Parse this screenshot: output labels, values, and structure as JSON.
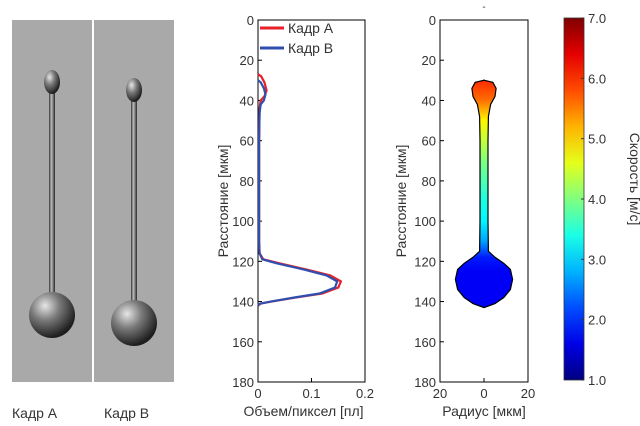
{
  "frames": [
    {
      "caption": "Кадр A"
    },
    {
      "caption": "Кадр B"
    }
  ],
  "colors": {
    "background_gray": "#a9a9a9",
    "series_a": "#e8202a",
    "series_b": "#2f4fb0"
  },
  "chart_data": [
    {
      "type": "line",
      "orientation": "vertical-profile",
      "xlabel": "Объем/пиксел [пл]",
      "ylabel": "Расстояние [мкм]",
      "xlim": [
        0,
        0.2
      ],
      "ylim": [
        0,
        180
      ],
      "y_inverted": true,
      "xticks": [
        0,
        0.1,
        0.2
      ],
      "xtick_labels": [
        "0",
        "0.1",
        "0.2"
      ],
      "yticks": [
        0,
        20,
        40,
        60,
        80,
        100,
        120,
        140,
        160,
        180
      ],
      "ytick_labels": [
        "0",
        "20",
        "40",
        "60",
        "80",
        "100",
        "120",
        "140",
        "160",
        "180"
      ],
      "legend_position": "top-right",
      "series": [
        {
          "name": "Кадр A",
          "color": "#e8202a",
          "points": [
            [
              0,
              27
            ],
            [
              0.006,
              28
            ],
            [
              0.012,
              31
            ],
            [
              0.016,
              35
            ],
            [
              0.012,
              38
            ],
            [
              0.005,
              40
            ],
            [
              0.003,
              44
            ],
            [
              0.002,
              60
            ],
            [
              0.002,
              90
            ],
            [
              0.002,
              110
            ],
            [
              0.003,
              116
            ],
            [
              0.01,
              119
            ],
            [
              0.04,
              121
            ],
            [
              0.09,
              124
            ],
            [
              0.135,
              127
            ],
            [
              0.155,
              130
            ],
            [
              0.15,
              133
            ],
            [
              0.12,
              136
            ],
            [
              0.07,
              138
            ],
            [
              0.025,
              140
            ],
            [
              0.005,
              141
            ],
            [
              0,
              142
            ]
          ]
        },
        {
          "name": "Кадр B",
          "color": "#2f4fb0",
          "points": [
            [
              0,
              30
            ],
            [
              0.005,
              31
            ],
            [
              0.011,
              34
            ],
            [
              0.014,
              37
            ],
            [
              0.011,
              40
            ],
            [
              0.005,
              42
            ],
            [
              0.003,
              46
            ],
            [
              0.002,
              60
            ],
            [
              0.002,
              90
            ],
            [
              0.002,
              110
            ],
            [
              0.003,
              116
            ],
            [
              0.008,
              119
            ],
            [
              0.035,
              121
            ],
            [
              0.085,
              124
            ],
            [
              0.128,
              127
            ],
            [
              0.148,
              130
            ],
            [
              0.144,
              133
            ],
            [
              0.115,
              136
            ],
            [
              0.068,
              138
            ],
            [
              0.024,
              140
            ],
            [
              0.004,
              141
            ],
            [
              0,
              142
            ]
          ]
        }
      ]
    },
    {
      "type": "heatmap",
      "xlabel": "Радиус [мкм]",
      "ylabel": "Расстояние [мкм]",
      "xlim": [
        -20,
        20
      ],
      "ylim": [
        0,
        180
      ],
      "y_inverted": true,
      "xticks": [
        -20,
        0,
        20
      ],
      "xtick_labels": [
        "20",
        "0",
        "20"
      ],
      "yticks": [
        0,
        20,
        40,
        60,
        80,
        100,
        120,
        140,
        160,
        180
      ],
      "ytick_labels": [
        "0",
        "20",
        "40",
        "60",
        "80",
        "100",
        "120",
        "140",
        "160",
        "180"
      ],
      "top_mark": "-",
      "shape_profile": [
        [
          30,
          0
        ],
        [
          31,
          4
        ],
        [
          34,
          5.5
        ],
        [
          38,
          5
        ],
        [
          42,
          3
        ],
        [
          48,
          2
        ],
        [
          60,
          1.8
        ],
        [
          100,
          1.8
        ],
        [
          115,
          2
        ],
        [
          118,
          5
        ],
        [
          121,
          9
        ],
        [
          124,
          12
        ],
        [
          129,
          13
        ],
        [
          134,
          12
        ],
        [
          138,
          9
        ],
        [
          141,
          5
        ],
        [
          143,
          0
        ]
      ],
      "velocity_profile": [
        [
          30,
          6.0
        ],
        [
          40,
          5.6
        ],
        [
          50,
          4.8
        ],
        [
          60,
          4.4
        ],
        [
          70,
          4.0
        ],
        [
          80,
          3.7
        ],
        [
          90,
          3.4
        ],
        [
          100,
          3.2
        ],
        [
          110,
          2.7
        ],
        [
          118,
          1.9
        ],
        [
          125,
          1.7
        ],
        [
          143,
          1.7
        ]
      ],
      "colorbar": {
        "label": "Скорость [м/с]",
        "min": 1.0,
        "max": 7.0,
        "ticks": [
          1.0,
          2.0,
          3.0,
          4.0,
          5.0,
          6.0,
          7.0
        ],
        "tick_labels": [
          "1.0",
          "2.0",
          "3.0",
          "4.0",
          "5.0",
          "6.0",
          "7.0"
        ],
        "colormap": "jet"
      }
    }
  ]
}
